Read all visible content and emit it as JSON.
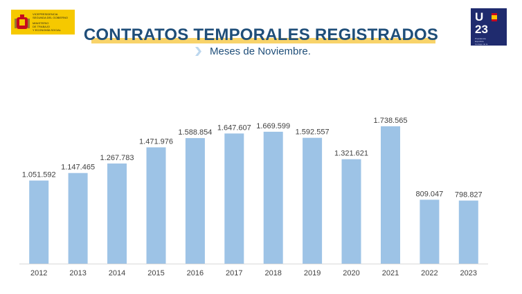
{
  "header": {
    "ministry_lines": [
      "Vicepresidencia",
      "Segunda del Gobierno",
      "Ministerio",
      "de Trabajo",
      "y Economía Social"
    ],
    "presidency_letters": [
      "U",
      "23"
    ],
    "presidency_text": [
      "Presidencia",
      "Española",
      "Consejo de la",
      "Unión Europea"
    ],
    "title": "CONTRATOS TEMPORALES REGISTRADOS",
    "subtitle": "Meses de Noviembre."
  },
  "colors": {
    "bar": "#9dc3e6",
    "title": "#1f4e79",
    "highlight": "#f8d36a",
    "axis_text": "#404040"
  },
  "chart_data": {
    "type": "bar",
    "title": "CONTRATOS TEMPORALES REGISTRADOS",
    "subtitle": "Meses de Noviembre.",
    "categories": [
      "2012",
      "2013",
      "2014",
      "2015",
      "2016",
      "2017",
      "2018",
      "2019",
      "2020",
      "2021",
      "2022",
      "2023"
    ],
    "values": [
      1051592,
      1147465,
      1267783,
      1471976,
      1588854,
      1647607,
      1669599,
      1592557,
      1321621,
      1738565,
      809047,
      798827
    ],
    "value_labels": [
      "1.051.592",
      "1.147.465",
      "1.267.783",
      "1.471.976",
      "1.588.854",
      "1.647.607",
      "1.669.599",
      "1.592.557",
      "1.321.621",
      "1.738.565",
      "809.047",
      "798.827"
    ],
    "ylim": [
      0,
      1800000
    ],
    "grid": false,
    "legend": "none"
  }
}
